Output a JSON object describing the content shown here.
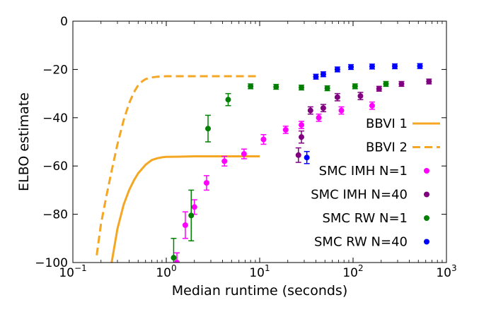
{
  "chart_data": {
    "type": "scatter",
    "xlabel": "Median runtime (seconds)",
    "ylabel": "ELBO estimate",
    "xscale": "log",
    "xlim": [
      0.1,
      1000
    ],
    "ylim": [
      -100,
      0
    ],
    "xticks": [
      {
        "value": 0.1,
        "base": "10",
        "exp": "−1"
      },
      {
        "value": 1,
        "base": "10",
        "exp": "0"
      },
      {
        "value": 10,
        "base": "10",
        "exp": "1"
      },
      {
        "value": 100,
        "base": "10",
        "exp": "2"
      },
      {
        "value": 1000,
        "base": "10",
        "exp": "3"
      }
    ],
    "yticks": [
      {
        "value": 0,
        "label": "0"
      },
      {
        "value": -20,
        "label": "−20"
      },
      {
        "value": -40,
        "label": "−40"
      },
      {
        "value": -60,
        "label": "−60"
      },
      {
        "value": -80,
        "label": "−80"
      },
      {
        "value": -100,
        "label": "−100"
      }
    ],
    "grid": false,
    "legend_position": "lower-right",
    "lines": [
      {
        "name": "BBVI 1",
        "color": "#f5a623",
        "dash": "solid",
        "x": [
          0.26,
          0.3,
          0.35,
          0.4,
          0.45,
          0.5,
          0.6,
          0.7,
          0.8,
          0.9,
          1.0,
          1.5,
          2,
          3,
          5,
          7,
          10
        ],
        "y": [
          -100,
          -86,
          -76,
          -70,
          -66,
          -63,
          -59.5,
          -57.5,
          -56.8,
          -56.4,
          -56.2,
          -56.1,
          -56,
          -56,
          -56,
          -56,
          -56
        ]
      },
      {
        "name": "BBVI 2",
        "color": "#f5a623",
        "dash": "dashed",
        "x": [
          0.18,
          0.2,
          0.23,
          0.26,
          0.3,
          0.35,
          0.4,
          0.45,
          0.5,
          0.55,
          0.6,
          0.7,
          0.8,
          1.0,
          1.5,
          2,
          3,
          5,
          7,
          10
        ],
        "y": [
          -97,
          -84,
          -72,
          -62,
          -51,
          -41,
          -34,
          -29.5,
          -26.5,
          -25,
          -24,
          -23.3,
          -23,
          -22.8,
          -22.8,
          -22.8,
          -22.8,
          -22.8,
          -22.8,
          -22.8
        ]
      }
    ],
    "series": [
      {
        "name": "SMC IMH N=1",
        "color": "#ff00ff",
        "points": [
          {
            "x": 1.3,
            "y": -100,
            "err": 4
          },
          {
            "x": 1.6,
            "y": -84.5,
            "err": 5.5
          },
          {
            "x": 2.0,
            "y": -77,
            "err": 3
          },
          {
            "x": 2.7,
            "y": -67,
            "err": 3
          },
          {
            "x": 4.2,
            "y": -58,
            "err": 2
          },
          {
            "x": 6.8,
            "y": -55,
            "err": 2
          },
          {
            "x": 11,
            "y": -49,
            "err": 2
          },
          {
            "x": 19,
            "y": -45,
            "err": 1.5
          },
          {
            "x": 28,
            "y": -43,
            "err": 1.5
          },
          {
            "x": 43,
            "y": -40,
            "err": 1.5
          },
          {
            "x": 75,
            "y": -37,
            "err": 1.5
          },
          {
            "x": 160,
            "y": -35,
            "err": 1.5
          }
        ]
      },
      {
        "name": "SMC IMH N=40",
        "color": "#800080",
        "points": [
          {
            "x": 26,
            "y": -55.5,
            "err": 3
          },
          {
            "x": 28,
            "y": -48,
            "err": 2.5
          },
          {
            "x": 35,
            "y": -37,
            "err": 1.5
          },
          {
            "x": 48,
            "y": -36,
            "err": 1.5
          },
          {
            "x": 68,
            "y": -31.5,
            "err": 1.5
          },
          {
            "x": 120,
            "y": -31,
            "err": 1.5
          },
          {
            "x": 190,
            "y": -28,
            "err": 1
          },
          {
            "x": 330,
            "y": -26,
            "err": 1
          },
          {
            "x": 650,
            "y": -25,
            "err": 1
          }
        ]
      },
      {
        "name": "SMC RW N=1",
        "color": "#008000",
        "points": [
          {
            "x": 1.2,
            "y": -98,
            "err": 8
          },
          {
            "x": 1.85,
            "y": -80.5,
            "err": 10.5
          },
          {
            "x": 2.8,
            "y": -44.5,
            "err": 5.5
          },
          {
            "x": 4.6,
            "y": -32.5,
            "err": 2.5
          },
          {
            "x": 8,
            "y": -27,
            "err": 1
          },
          {
            "x": 15,
            "y": -27.2,
            "err": 1
          },
          {
            "x": 28,
            "y": -27.5,
            "err": 1
          },
          {
            "x": 53,
            "y": -27.8,
            "err": 1
          },
          {
            "x": 105,
            "y": -27,
            "err": 1
          },
          {
            "x": 225,
            "y": -26,
            "err": 1
          }
        ]
      },
      {
        "name": "SMC RW N=40",
        "color": "#0000ff",
        "points": [
          {
            "x": 32,
            "y": -56.5,
            "err": 2.5
          },
          {
            "x": 40,
            "y": -23,
            "err": 1
          },
          {
            "x": 48,
            "y": -22,
            "err": 1
          },
          {
            "x": 68,
            "y": -20,
            "err": 1
          },
          {
            "x": 95,
            "y": -19,
            "err": 1
          },
          {
            "x": 160,
            "y": -18.8,
            "err": 1
          },
          {
            "x": 280,
            "y": -18.7,
            "err": 1
          },
          {
            "x": 520,
            "y": -18.6,
            "err": 1
          }
        ]
      }
    ]
  }
}
